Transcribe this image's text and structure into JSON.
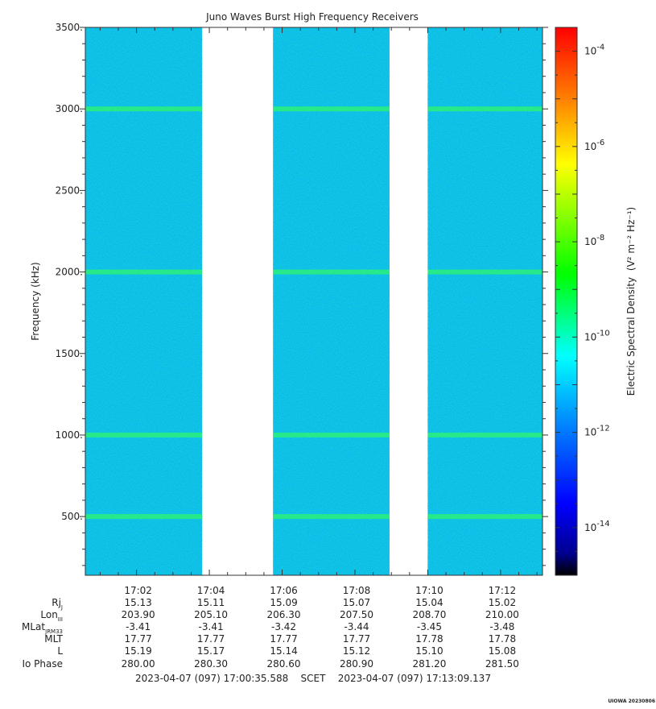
{
  "chart_data": {
    "type": "heatmap",
    "title": "Juno Waves Burst High Frequency Receivers",
    "ylabel": "Frequency (kHz)",
    "y_ticks": [
      "500.",
      "1000.",
      "1500.",
      "2000.",
      "2500.",
      "3000.",
      "3500."
    ],
    "y_tick_values": [
      500,
      1000,
      1500,
      2000,
      2500,
      3000,
      3500
    ],
    "ylim": [
      140,
      3500
    ],
    "x_tick_labels": [
      "17:02",
      "17:04",
      "17:06",
      "17:08",
      "17:10",
      "17:12"
    ],
    "x_tick_minutes": [
      62,
      64,
      66,
      68,
      70,
      72
    ],
    "xlim_minutes": [
      60.593,
      73.152
    ],
    "data_segments_minutes": [
      [
        60.593,
        63.8
      ],
      [
        65.75,
        68.95
      ],
      [
        70.0,
        73.152
      ]
    ],
    "emission_lines_khz": [
      500,
      1000,
      2000,
      3000
    ],
    "colorbar": {
      "label": "Electric Spectral Density",
      "unit_label": "(V² m⁻² Hz⁻¹)",
      "tick_labels": [
        "10",
        "10",
        "10",
        "10",
        "10",
        "10"
      ],
      "tick_exponents": [
        "-14",
        "-12",
        "-10",
        "-8",
        "-6",
        "-4"
      ],
      "tick_values_log10": [
        -14,
        -12,
        -10,
        -8,
        -6,
        -4
      ],
      "range_log10": [
        -15.0,
        -3.5
      ],
      "colors": [
        "#000000",
        "#00008f",
        "#0000ff",
        "#0080ff",
        "#00ffff",
        "#00ff00",
        "#80ff00",
        "#ffff00",
        "#ff8000",
        "#ff0000"
      ]
    },
    "ephemeris_row_labels": [
      "Rj",
      "Lon",
      "MLat",
      "MLT",
      "L",
      "Io Phase"
    ],
    "ephemeris_row_subscripts": [
      "J",
      "III",
      "JRM33",
      "",
      "",
      ""
    ],
    "ephemeris": [
      [
        "15.13",
        "15.11",
        "15.09",
        "15.07",
        "15.04",
        "15.02"
      ],
      [
        "203.90",
        "205.10",
        "206.30",
        "207.50",
        "208.70",
        "210.00"
      ],
      [
        "-3.41",
        "-3.41",
        "-3.42",
        "-3.44",
        "-3.45",
        "-3.48"
      ],
      [
        "17.77",
        "17.77",
        "17.77",
        "17.77",
        "17.78",
        "17.78"
      ],
      [
        "15.19",
        "15.17",
        "15.14",
        "15.12",
        "15.10",
        "15.08"
      ],
      [
        "280.00",
        "280.30",
        "280.60",
        "280.90",
        "281.20",
        "281.50"
      ]
    ],
    "time_range_text": "2023-04-07 (097) 17:00:35.588    SCET    2023-04-07 (097) 17:13:09.137",
    "footer_tag": "UIOWA 20230806"
  }
}
